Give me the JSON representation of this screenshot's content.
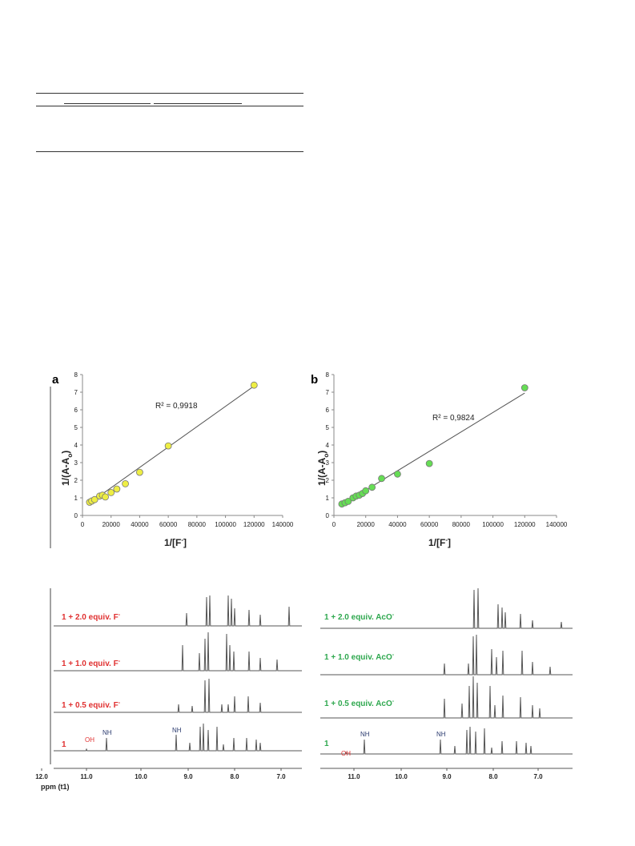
{
  "colors": {
    "yellow_marker": "#eeee44",
    "green_marker": "#66dd55",
    "fit_line": "#555555",
    "red_label": "#e03131",
    "green_label": "#2fa84f",
    "navy_label": "#2a3a6e",
    "spectrum_line": "#555555"
  },
  "chart_data": [
    {
      "panel": "a",
      "type": "scatter",
      "ylabel": "1/(A-A",
      "ylabel_sub": "o",
      "ylabel_end": ")",
      "xlabel": "1/[F",
      "xlabel_sup": "-",
      "xlabel_end": "]",
      "annotation": "R² = 0,9918",
      "xlim": [
        0,
        140000
      ],
      "ylim": [
        0,
        8
      ],
      "x_ticks": [
        "0",
        "20000",
        "40000",
        "60000",
        "80000",
        "100000",
        "120000",
        "140000"
      ],
      "y_ticks": [
        "0",
        "1",
        "2",
        "3",
        "4",
        "5",
        "6",
        "7",
        "8"
      ],
      "points": [
        {
          "x": 5000,
          "y": 0.75
        },
        {
          "x": 6500,
          "y": 0.82
        },
        {
          "x": 8500,
          "y": 0.9
        },
        {
          "x": 12000,
          "y": 1.1
        },
        {
          "x": 14000,
          "y": 1.15
        },
        {
          "x": 16000,
          "y": 1.05
        },
        {
          "x": 20000,
          "y": 1.3
        },
        {
          "x": 24000,
          "y": 1.5
        },
        {
          "x": 30000,
          "y": 1.8
        },
        {
          "x": 40000,
          "y": 2.45
        },
        {
          "x": 60000,
          "y": 3.95
        },
        {
          "x": 120000,
          "y": 7.4
        }
      ],
      "fit": {
        "x": [
          4000,
          120000
        ],
        "y": [
          0.65,
          7.35
        ]
      }
    },
    {
      "panel": "b",
      "type": "scatter",
      "ylabel": "1/(A-A",
      "ylabel_sub": "o",
      "ylabel_end": ")",
      "xlabel": "1/[F",
      "xlabel_sup": "-",
      "xlabel_end": "]",
      "annotation": "R² = 0,9824",
      "xlim": [
        0,
        140000
      ],
      "ylim": [
        0,
        8
      ],
      "x_ticks": [
        "0",
        "20000",
        "40000",
        "60000",
        "80000",
        "100000",
        "120000",
        "140000"
      ],
      "y_ticks": [
        "0",
        "1",
        "2",
        "3",
        "4",
        "5",
        "6",
        "7",
        "8"
      ],
      "points": [
        {
          "x": 5000,
          "y": 0.65
        },
        {
          "x": 7000,
          "y": 0.72
        },
        {
          "x": 9000,
          "y": 0.8
        },
        {
          "x": 12000,
          "y": 1.0
        },
        {
          "x": 14000,
          "y": 1.1
        },
        {
          "x": 16000,
          "y": 1.15
        },
        {
          "x": 18000,
          "y": 1.25
        },
        {
          "x": 20000,
          "y": 1.4
        },
        {
          "x": 24000,
          "y": 1.6
        },
        {
          "x": 30000,
          "y": 2.1
        },
        {
          "x": 40000,
          "y": 2.35
        },
        {
          "x": 60000,
          "y": 2.95
        },
        {
          "x": 120000,
          "y": 7.25
        }
      ],
      "fit": {
        "x": [
          4000,
          120000
        ],
        "y": [
          0.55,
          6.95
        ]
      }
    }
  ],
  "spectra": {
    "left": {
      "x_ticks": [
        "12.0",
        "11.0",
        "10.0",
        "9.0",
        "8.0",
        "7.0"
      ],
      "axis_label": "ppm (t1)",
      "traces": [
        {
          "label": "1 + 2.0 equiv. F",
          "sup": "-"
        },
        {
          "label": "1 + 1.0 equiv. F",
          "sup": "-"
        },
        {
          "label": "1 + 0.5 equiv. F",
          "sup": "-"
        },
        {
          "label": "1",
          "sup": ""
        }
      ],
      "peak_labels": [
        "OH",
        "NH",
        "NH"
      ]
    },
    "right": {
      "x_ticks": [
        "11.0",
        "10.0",
        "9.0",
        "8.0",
        "7.0"
      ],
      "traces": [
        {
          "label": "1 + 2.0 equiv. AcO",
          "sup": "-"
        },
        {
          "label": "1 + 1.0 equiv. AcO",
          "sup": "-"
        },
        {
          "label": "1 + 0.5 equiv. AcO",
          "sup": "-"
        },
        {
          "label": "1",
          "sup": ""
        }
      ],
      "peak_labels": [
        "OH",
        "NH",
        "NH"
      ]
    }
  }
}
